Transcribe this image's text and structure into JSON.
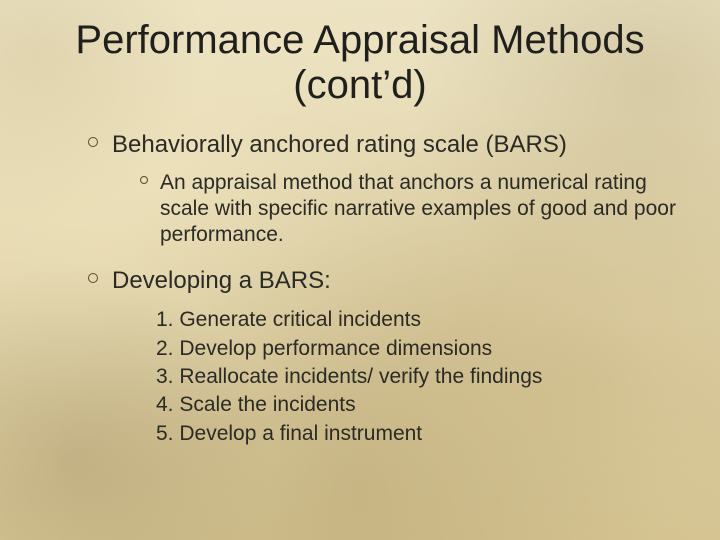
{
  "colors": {
    "text": "#2a2a26",
    "title": "#1f1f1d",
    "bullet_ring": "#5a4a2a",
    "background_top": "#ece3c3",
    "background_mid": "#e5d9b2",
    "background_bottom": "#d8c896"
  },
  "typography": {
    "family": "Arial",
    "title_size_pt": 30,
    "level1_size_pt": 18,
    "level2_size_pt": 16
  },
  "title": "Performance Appraisal Methods (cont’d)",
  "sections": [
    {
      "heading": "Behaviorally anchored rating scale (BARS)",
      "sub": "An appraisal method that anchors a numerical rating scale with specific narrative examples of good and poor performance."
    },
    {
      "heading": "Developing a BARS:",
      "steps": [
        "1. Generate critical incidents",
        "2. Develop performance dimensions",
        "3. Reallocate incidents/ verify the findings",
        "4. Scale the incidents",
        "5. Develop a final instrument"
      ]
    }
  ]
}
